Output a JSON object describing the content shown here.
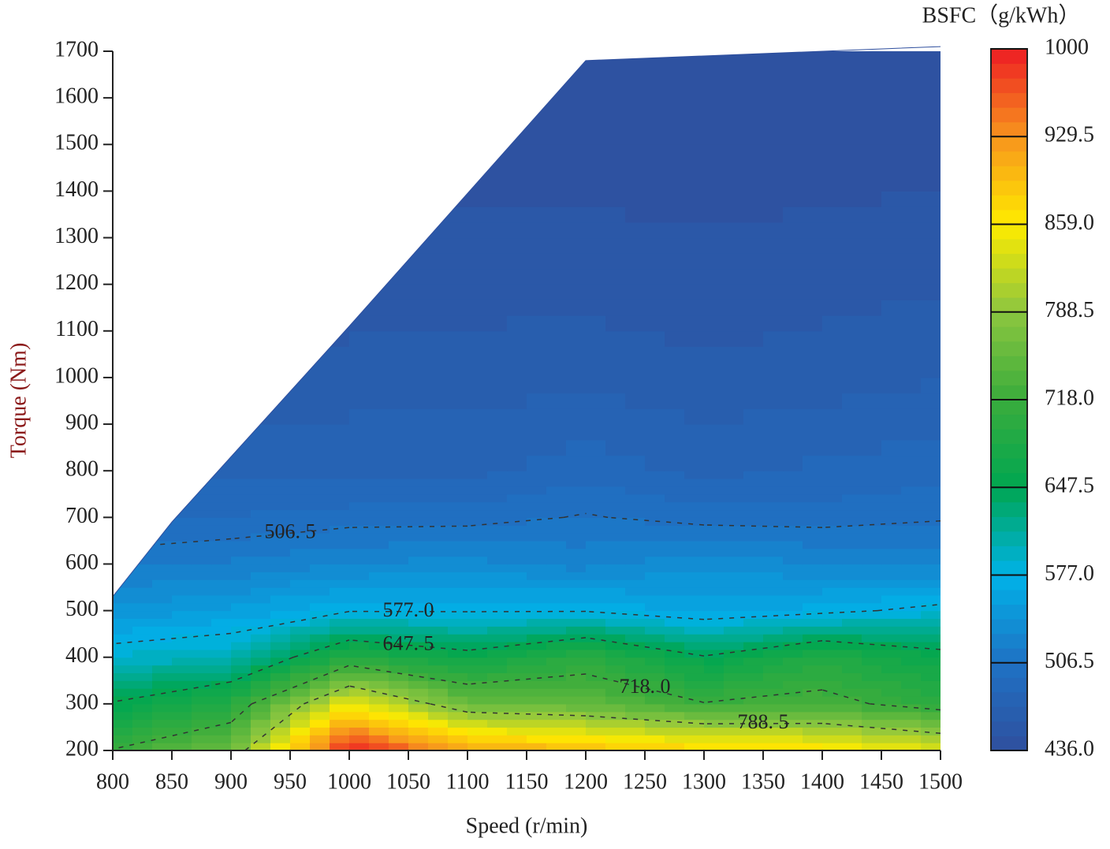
{
  "chart_data": {
    "type": "contour",
    "x_label": "Speed (r/min)",
    "y_label": "Torque (Nm)",
    "colorbar_title": "BSFC（g/kWh）",
    "xlim": [
      800,
      1500
    ],
    "ylim": [
      200,
      1700
    ],
    "xticks": [
      800,
      850,
      900,
      950,
      1000,
      1050,
      1100,
      1150,
      1200,
      1250,
      1300,
      1350,
      1400,
      1450,
      1500
    ],
    "yticks": [
      200,
      300,
      400,
      500,
      600,
      700,
      800,
      900,
      1000,
      1100,
      1200,
      1300,
      1400,
      1500,
      1600,
      1700
    ],
    "x": [
      800,
      900,
      1000,
      1100,
      1200,
      1300,
      1400,
      1500
    ],
    "y": [
      200,
      300,
      400,
      500,
      600,
      700,
      800,
      1000,
      1200,
      1400,
      1700
    ],
    "z": [
      [
        720,
        760,
        1000,
        920,
        900,
        880,
        870,
        840
      ],
      [
        650,
        690,
        850,
        760,
        750,
        720,
        730,
        700
      ],
      [
        590,
        600,
        690,
        660,
        700,
        650,
        690,
        660
      ],
      [
        545,
        555,
        575,
        575,
        575,
        560,
        570,
        585
      ],
      [
        515,
        520,
        530,
        535,
        525,
        540,
        530,
        525
      ],
      [
        490,
        495,
        500,
        500,
        508,
        500,
        500,
        505
      ],
      [
        480,
        480,
        480,
        480,
        490,
        480,
        485,
        490
      ],
      [
        462,
        462,
        465,
        465,
        468,
        462,
        466,
        470
      ],
      [
        452,
        452,
        452,
        455,
        455,
        452,
        455,
        458
      ],
      [
        445,
        445,
        445,
        446,
        446,
        445,
        446,
        448
      ],
      [
        440,
        440,
        440,
        440,
        440,
        440,
        440,
        440
      ]
    ],
    "envelope": {
      "x": [
        800,
        850,
        1000,
        1200,
        1500
      ],
      "values": [
        530,
        690,
        1110,
        1680,
        1710
      ]
    },
    "zlim": [
      436,
      1000
    ],
    "colorscale": [
      "#2f4f9e",
      "#1f72c4",
      "#00b2e8",
      "#00a651",
      "#3aac3c",
      "#8cc63f",
      "#ffeb00",
      "#f7941d",
      "#ed1c24"
    ],
    "colorbar_ticks": [
      {
        "value": 436,
        "label": "436.0"
      },
      {
        "value": 506.5,
        "label": "506.5"
      },
      {
        "value": 577,
        "label": "577.0"
      },
      {
        "value": 647.5,
        "label": "647.5"
      },
      {
        "value": 718,
        "label": "718.0"
      },
      {
        "value": 788.5,
        "label": "788.5"
      },
      {
        "value": 859,
        "label": "859.0"
      },
      {
        "value": 929.5,
        "label": "929.5"
      },
      1000
    ],
    "contour_levels": [
      {
        "value": 506.5,
        "label": "506. 5"
      },
      {
        "value": 577,
        "label": "577. 0"
      },
      {
        "value": 647.5,
        "label": "647. 5"
      },
      {
        "value": 718,
        "label": "718. 0"
      },
      {
        "value": 788.5,
        "label": "788. 5"
      }
    ]
  }
}
